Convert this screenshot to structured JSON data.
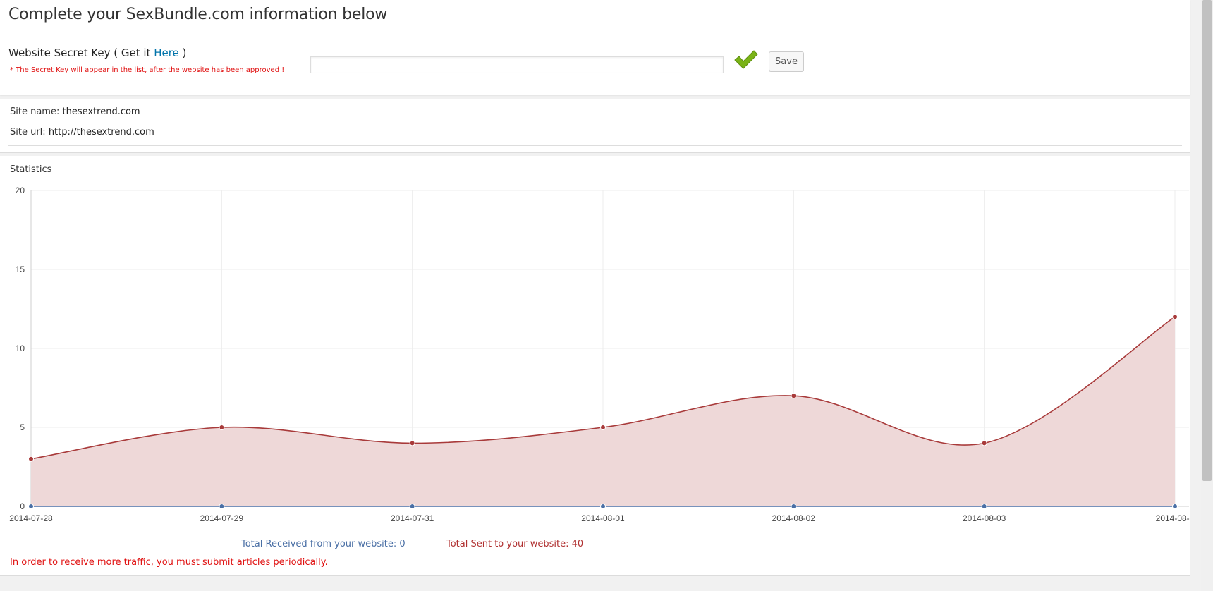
{
  "header": {
    "title": "Complete your SexBundle.com information below"
  },
  "secret_key": {
    "label_prefix": "Website Secret Key ( Get it ",
    "link_text": "Here",
    "label_suffix": " )",
    "note": "* The Secret Key will appear in the list, after the website has been approved !",
    "input_value": "",
    "save_label": "Save",
    "status_icon": "green-checkmark",
    "accent_color": "#7ab317"
  },
  "site": {
    "name_label": "Site name:",
    "name_value": "thesextrend.com",
    "url_label": "Site url:",
    "url_value": "http://thesextrend.com"
  },
  "stats": {
    "title": "Statistics",
    "legend_received_label": "Total Received from your website:",
    "legend_received_value": "0",
    "legend_sent_label": "Total Sent to your website:",
    "legend_sent_value": "40",
    "notice": "In order to receive more traffic, you must submit articles periodically."
  },
  "chart_data": {
    "type": "area",
    "categories": [
      "2014-07-28",
      "2014-07-29",
      "2014-07-31",
      "2014-08-01",
      "2014-08-02",
      "2014-08-03",
      "2014-08-0"
    ],
    "series": [
      {
        "values": [
          3,
          5,
          4,
          5,
          7,
          4,
          12
        ],
        "color": "#a83a3a",
        "fill": "#eed8d8"
      },
      {
        "values": [
          0,
          0,
          0,
          0,
          0,
          0,
          0
        ],
        "color": "#4a6fa5"
      }
    ],
    "y_ticks": [
      "0",
      "5",
      "10",
      "15",
      "20"
    ],
    "ylim": [
      0,
      20
    ],
    "grid": true,
    "legend_placement": "bottom"
  }
}
